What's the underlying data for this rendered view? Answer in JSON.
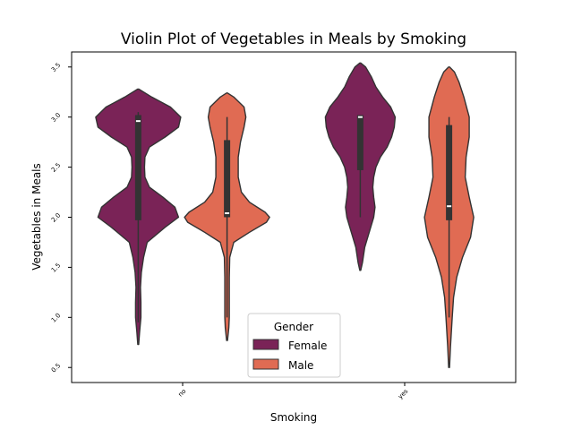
{
  "chart_data": {
    "type": "violin",
    "title": "Violin Plot of Vegetables in Meals by Smoking",
    "xlabel": "Smoking",
    "ylabel": "Vegetables in Meals",
    "categories": [
      "no",
      "yes"
    ],
    "yticks": [
      "0.5",
      "1.0",
      "1.5",
      "2.0",
      "2.5",
      "3.0",
      "3.5"
    ],
    "ytick_values": [
      0.5,
      1.0,
      1.5,
      2.0,
      2.5,
      3.0,
      3.5
    ],
    "ylim": [
      0.35,
      3.65
    ],
    "legend": {
      "title": "Gender",
      "placement": "bottom-center",
      "entries": [
        "Female",
        "Male"
      ]
    },
    "series": [
      {
        "name": "Female",
        "color": "#7a2357",
        "violins": [
          {
            "category": "no",
            "extent": [
              0.73,
              3.28
            ],
            "profile": [
              [
                0.73,
                0.01
              ],
              [
                0.85,
                0.03
              ],
              [
                1.0,
                0.06
              ],
              [
                1.15,
                0.06
              ],
              [
                1.3,
                0.05
              ],
              [
                1.45,
                0.07
              ],
              [
                1.6,
                0.12
              ],
              [
                1.75,
                0.2
              ],
              [
                1.9,
                0.6
              ],
              [
                2.0,
                0.9
              ],
              [
                2.1,
                0.82
              ],
              [
                2.2,
                0.55
              ],
              [
                2.3,
                0.25
              ],
              [
                2.4,
                0.15
              ],
              [
                2.5,
                0.14
              ],
              [
                2.6,
                0.15
              ],
              [
                2.7,
                0.25
              ],
              [
                2.8,
                0.6
              ],
              [
                2.9,
                0.9
              ],
              [
                3.0,
                0.95
              ],
              [
                3.1,
                0.72
              ],
              [
                3.2,
                0.3
              ],
              [
                3.28,
                0.01
              ]
            ],
            "whisker": [
              0.95,
              3.05
            ],
            "iqr": [
              1.97,
              3.02
            ],
            "median": 2.96
          },
          {
            "category": "yes",
            "extent": [
              1.47,
              3.54
            ],
            "profile": [
              [
                1.47,
                0.01
              ],
              [
                1.55,
                0.05
              ],
              [
                1.7,
                0.1
              ],
              [
                1.85,
                0.2
              ],
              [
                2.0,
                0.3
              ],
              [
                2.1,
                0.33
              ],
              [
                2.2,
                0.3
              ],
              [
                2.3,
                0.28
              ],
              [
                2.4,
                0.3
              ],
              [
                2.5,
                0.35
              ],
              [
                2.6,
                0.45
              ],
              [
                2.7,
                0.6
              ],
              [
                2.8,
                0.7
              ],
              [
                2.9,
                0.76
              ],
              [
                3.0,
                0.78
              ],
              [
                3.1,
                0.68
              ],
              [
                3.2,
                0.5
              ],
              [
                3.3,
                0.35
              ],
              [
                3.4,
                0.25
              ],
              [
                3.5,
                0.12
              ],
              [
                3.54,
                0.01
              ]
            ],
            "whisker": [
              2.0,
              3.02
            ],
            "iqr": [
              2.47,
              3.02
            ],
            "median": 3.0
          }
        ]
      },
      {
        "name": "Male",
        "color": "#e06b53",
        "violins": [
          {
            "category": "no",
            "extent": [
              0.77,
              3.24
            ],
            "profile": [
              [
                0.77,
                0.01
              ],
              [
                0.9,
                0.04
              ],
              [
                1.0,
                0.05
              ],
              [
                1.2,
                0.05
              ],
              [
                1.4,
                0.05
              ],
              [
                1.6,
                0.06
              ],
              [
                1.75,
                0.15
              ],
              [
                1.85,
                0.5
              ],
              [
                1.95,
                0.88
              ],
              [
                2.0,
                0.95
              ],
              [
                2.05,
                0.85
              ],
              [
                2.15,
                0.5
              ],
              [
                2.25,
                0.32
              ],
              [
                2.4,
                0.25
              ],
              [
                2.6,
                0.25
              ],
              [
                2.75,
                0.3
              ],
              [
                2.9,
                0.38
              ],
              [
                3.0,
                0.42
              ],
              [
                3.1,
                0.38
              ],
              [
                3.2,
                0.15
              ],
              [
                3.24,
                0.01
              ]
            ],
            "whisker": [
              1.0,
              3.0
            ],
            "iqr": [
              2.0,
              2.77
            ],
            "median": 2.04
          },
          {
            "category": "yes",
            "extent": [
              0.5,
              3.5
            ],
            "profile": [
              [
                0.5,
                0.01
              ],
              [
                0.7,
                0.03
              ],
              [
                0.85,
                0.05
              ],
              [
                1.0,
                0.07
              ],
              [
                1.2,
                0.1
              ],
              [
                1.4,
                0.17
              ],
              [
                1.6,
                0.3
              ],
              [
                1.8,
                0.48
              ],
              [
                2.0,
                0.55
              ],
              [
                2.2,
                0.45
              ],
              [
                2.4,
                0.36
              ],
              [
                2.6,
                0.38
              ],
              [
                2.8,
                0.45
              ],
              [
                3.0,
                0.45
              ],
              [
                3.2,
                0.33
              ],
              [
                3.35,
                0.22
              ],
              [
                3.45,
                0.12
              ],
              [
                3.5,
                0.01
              ]
            ],
            "whisker": [
              1.0,
              3.0
            ],
            "iqr": [
              1.97,
              2.92
            ],
            "median": 2.11
          }
        ]
      }
    ]
  }
}
